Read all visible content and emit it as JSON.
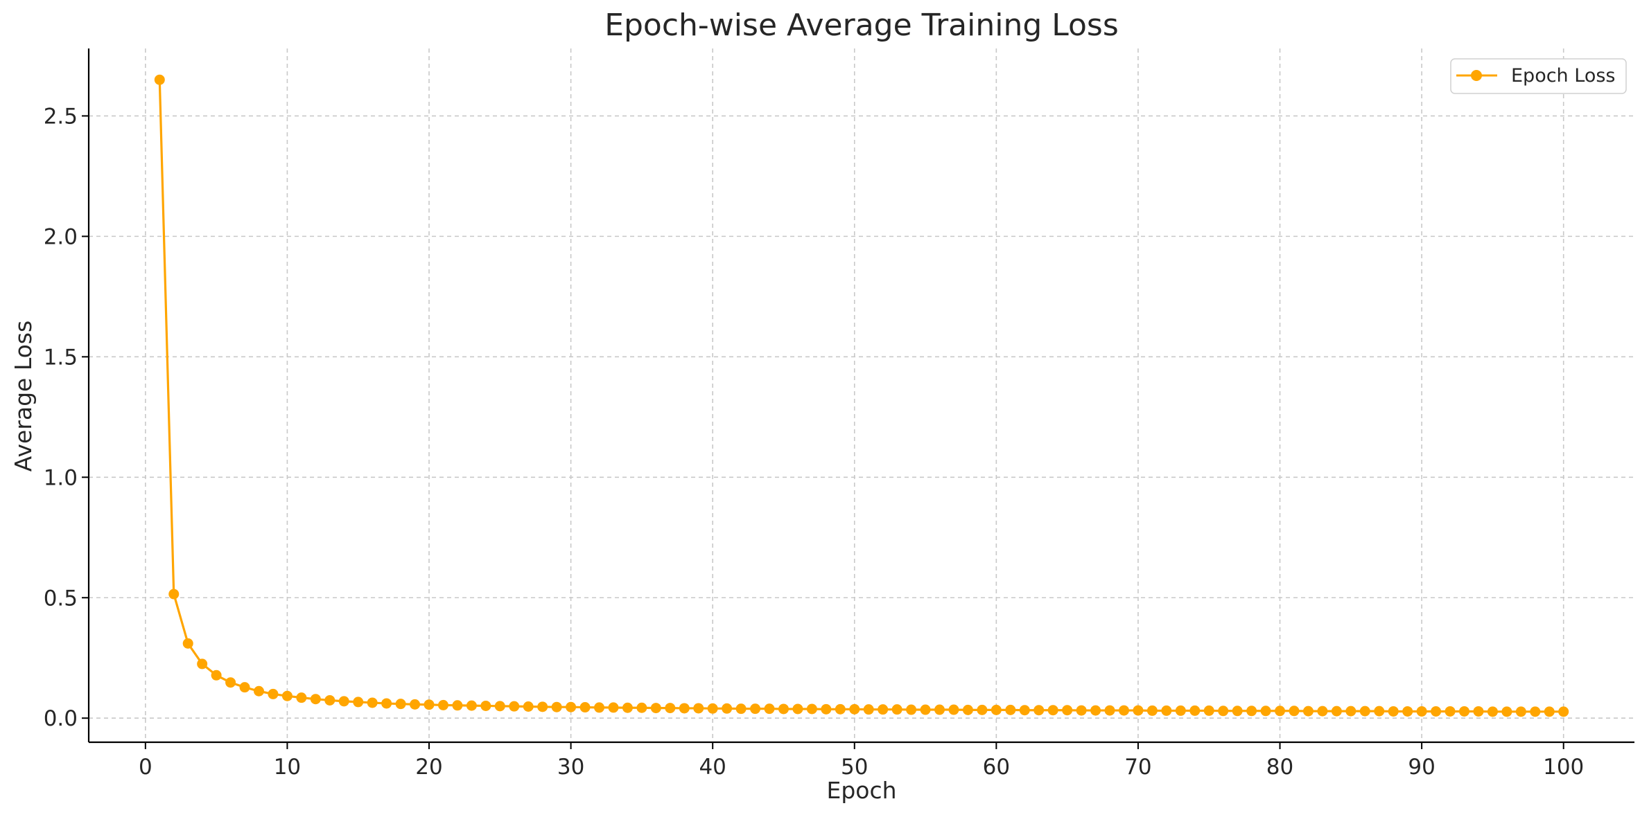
{
  "chart_data": {
    "type": "line",
    "title": "Epoch-wise Average Training Loss",
    "xlabel": "Epoch",
    "ylabel": "Average Loss",
    "xlim": [
      -4,
      105
    ],
    "ylim": [
      -0.1,
      2.78
    ],
    "x_ticks": [
      0,
      10,
      20,
      30,
      40,
      50,
      60,
      70,
      80,
      90,
      100
    ],
    "x_tick_labels": [
      "0",
      "10",
      "20",
      "30",
      "40",
      "50",
      "60",
      "70",
      "80",
      "90",
      "100"
    ],
    "y_ticks": [
      0.0,
      0.5,
      1.0,
      1.5,
      2.0,
      2.5
    ],
    "y_tick_labels": [
      "0.0",
      "0.5",
      "1.0",
      "1.5",
      "2.0",
      "2.5"
    ],
    "grid": true,
    "legend_position": "top-right",
    "series": [
      {
        "name": "Epoch Loss",
        "color": "#FFA500",
        "marker": "circle",
        "x": [
          1,
          2,
          3,
          4,
          5,
          6,
          7,
          8,
          9,
          10,
          11,
          12,
          13,
          14,
          15,
          16,
          17,
          18,
          19,
          20,
          21,
          22,
          23,
          24,
          25,
          26,
          27,
          28,
          29,
          30,
          31,
          32,
          33,
          34,
          35,
          36,
          37,
          38,
          39,
          40,
          41,
          42,
          43,
          44,
          45,
          46,
          47,
          48,
          49,
          50,
          51,
          52,
          53,
          54,
          55,
          56,
          57,
          58,
          59,
          60,
          61,
          62,
          63,
          64,
          65,
          66,
          67,
          68,
          69,
          70,
          71,
          72,
          73,
          74,
          75,
          76,
          77,
          78,
          79,
          80,
          81,
          82,
          83,
          84,
          85,
          86,
          87,
          88,
          89,
          90,
          91,
          92,
          93,
          94,
          95,
          96,
          97,
          98,
          99,
          100
        ],
        "y": [
          2.65,
          0.515,
          0.31,
          0.225,
          0.178,
          0.148,
          0.128,
          0.112,
          0.1,
          0.092,
          0.085,
          0.079,
          0.074,
          0.07,
          0.067,
          0.064,
          0.061,
          0.059,
          0.057,
          0.056,
          0.054,
          0.053,
          0.052,
          0.051,
          0.05,
          0.049,
          0.048,
          0.047,
          0.046,
          0.046,
          0.045,
          0.044,
          0.044,
          0.043,
          0.043,
          0.042,
          0.042,
          0.041,
          0.041,
          0.04,
          0.04,
          0.039,
          0.039,
          0.039,
          0.038,
          0.038,
          0.038,
          0.037,
          0.037,
          0.037,
          0.036,
          0.036,
          0.036,
          0.035,
          0.035,
          0.035,
          0.035,
          0.034,
          0.034,
          0.034,
          0.034,
          0.033,
          0.033,
          0.033,
          0.033,
          0.032,
          0.032,
          0.032,
          0.032,
          0.032,
          0.031,
          0.031,
          0.031,
          0.031,
          0.031,
          0.03,
          0.03,
          0.03,
          0.03,
          0.03,
          0.03,
          0.029,
          0.029,
          0.029,
          0.029,
          0.029,
          0.029,
          0.028,
          0.028,
          0.028,
          0.028,
          0.028,
          0.028,
          0.028,
          0.027,
          0.027,
          0.027,
          0.027,
          0.027,
          0.027
        ]
      }
    ]
  }
}
